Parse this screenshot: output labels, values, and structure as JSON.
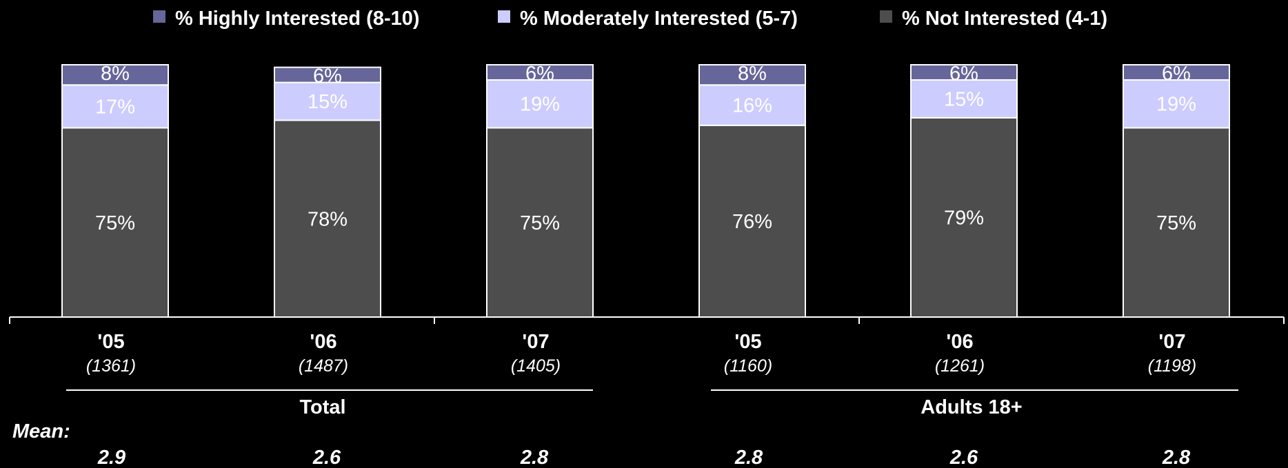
{
  "chart_data": {
    "type": "bar",
    "stacked": true,
    "orientation": "vertical",
    "categories": [
      "'05",
      "'06",
      "'07",
      "'05",
      "'06",
      "'07"
    ],
    "sample_sizes": [
      "(1361)",
      "(1487)",
      "(1405)",
      "(1160)",
      "(1261)",
      "(1198)"
    ],
    "groups": [
      {
        "label": "Total",
        "category_indices": [
          0,
          1,
          2
        ]
      },
      {
        "label": "Adults 18+",
        "category_indices": [
          3,
          4,
          5
        ]
      }
    ],
    "series": [
      {
        "name": "% Not Interested (4-1)",
        "color": "#4d4d4d",
        "values": [
          75,
          78,
          75,
          76,
          79,
          75
        ],
        "labels": [
          "75%",
          "78%",
          "75%",
          "76%",
          "79%",
          "75%"
        ]
      },
      {
        "name": "% Moderately Interested (5-7)",
        "color": "#ccccff",
        "values": [
          17,
          15,
          19,
          16,
          15,
          19
        ],
        "labels": [
          "17%",
          "15%",
          "19%",
          "16%",
          "15%",
          "19%"
        ]
      },
      {
        "name": "% Highly Interested (8-10)",
        "color": "#66669a",
        "values": [
          8,
          6,
          6,
          8,
          6,
          6
        ],
        "labels": [
          "8%",
          "6%",
          "6%",
          "8%",
          "6%",
          "6%"
        ]
      }
    ],
    "legend_order": [
      2,
      1,
      0
    ],
    "legend_position": "top",
    "ylim": [
      0,
      100
    ],
    "grid": false,
    "mean": {
      "title": "Mean:",
      "values": [
        "2.9",
        "2.6",
        "2.8",
        "2.8",
        "2.6",
        "2.8"
      ]
    }
  }
}
